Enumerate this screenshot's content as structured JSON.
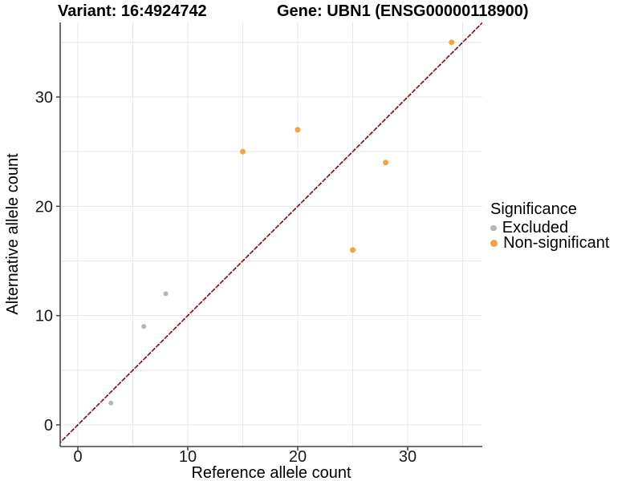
{
  "chart_data": {
    "type": "scatter",
    "title_left": "Variant: 16:4924742",
    "title_right": "Gene: UBN1 (ENSG00000118900)",
    "xlabel": "Reference allele count",
    "ylabel": "Alternative allele count",
    "x_ticks": [
      0,
      10,
      20,
      30
    ],
    "y_ticks": [
      0,
      10,
      20,
      30
    ],
    "grid_step": 5,
    "grid_max": 35,
    "xlim": [
      -1.6,
      36.7
    ],
    "ylim": [
      -2.0,
      36.8
    ],
    "grid": true,
    "legend_position": "right",
    "legend_title": "Significance",
    "identity_line": {
      "equation": "y = x",
      "style": "dashed",
      "colors": [
        "#1C1C1C",
        "#B22222"
      ]
    },
    "series": [
      {
        "name": "Excluded",
        "color": "#B5B5B5",
        "point_radius": 3,
        "points": [
          [
            3,
            2
          ],
          [
            6,
            9
          ],
          [
            8,
            12
          ]
        ]
      },
      {
        "name": "Non-significant",
        "color": "#F8A23A",
        "point_radius": 3.5,
        "points": [
          [
            15,
            25
          ],
          [
            20,
            27
          ],
          [
            25,
            16
          ],
          [
            28,
            24
          ],
          [
            34,
            35
          ]
        ]
      }
    ],
    "colors": {
      "gridline": "#E7E7E7",
      "axis": "#404040",
      "tick_text": "#1A1A1A"
    }
  }
}
